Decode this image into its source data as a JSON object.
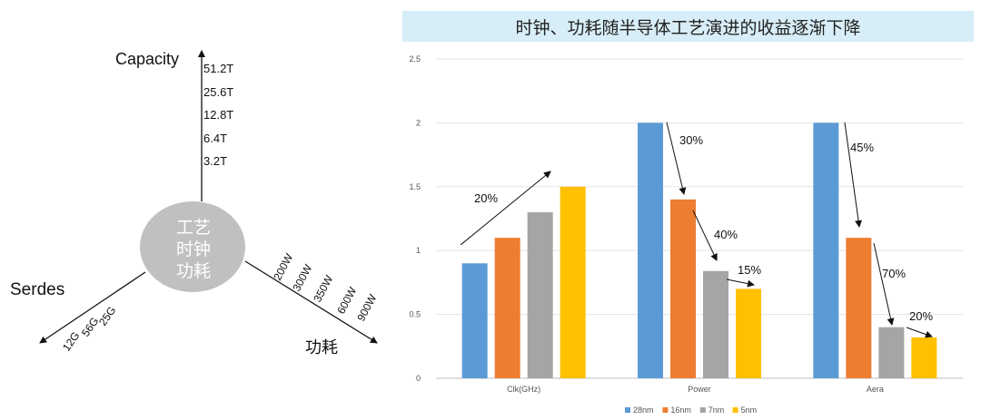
{
  "diagram": {
    "center_lines": [
      "工艺",
      "时钟",
      "功耗"
    ],
    "capacity_label": "Capacity",
    "capacity_ticks": [
      "51.2T",
      "25.6T",
      "12.8T",
      "6.4T",
      "3.2T"
    ],
    "power_label": "功耗",
    "power_ticks": [
      "200W",
      "300W",
      "350W",
      "600W",
      "900W"
    ],
    "serdes_label": "Serdes",
    "serdes_ticks": [
      "25G",
      "56G",
      "12G"
    ]
  },
  "chart_data": {
    "type": "bar",
    "title": "时钟、功耗随半导体工艺演进的收益逐渐下降",
    "categories": [
      "Clk(GHz)",
      "Power",
      "Aera"
    ],
    "series": [
      {
        "name": "28nm",
        "color": "#5b9bd5",
        "values": [
          0.9,
          2.0,
          2.0
        ]
      },
      {
        "name": "16nm",
        "color": "#ed7d31",
        "values": [
          1.1,
          1.4,
          1.1
        ]
      },
      {
        "name": "7nm",
        "color": "#a5a5a5",
        "values": [
          1.3,
          0.84,
          0.4
        ]
      },
      {
        "name": "5nm",
        "color": "#ffc000",
        "values": [
          1.5,
          0.7,
          0.32
        ]
      }
    ],
    "ylim": [
      0,
      2.5
    ],
    "yticks": [
      "0",
      "0.5",
      "1",
      "1.5",
      "2",
      "2.5"
    ],
    "grid": true,
    "legend": "bottom",
    "annotations": [
      "20%",
      "30%",
      "40%",
      "15%",
      "45%",
      "70%",
      "20%"
    ]
  }
}
